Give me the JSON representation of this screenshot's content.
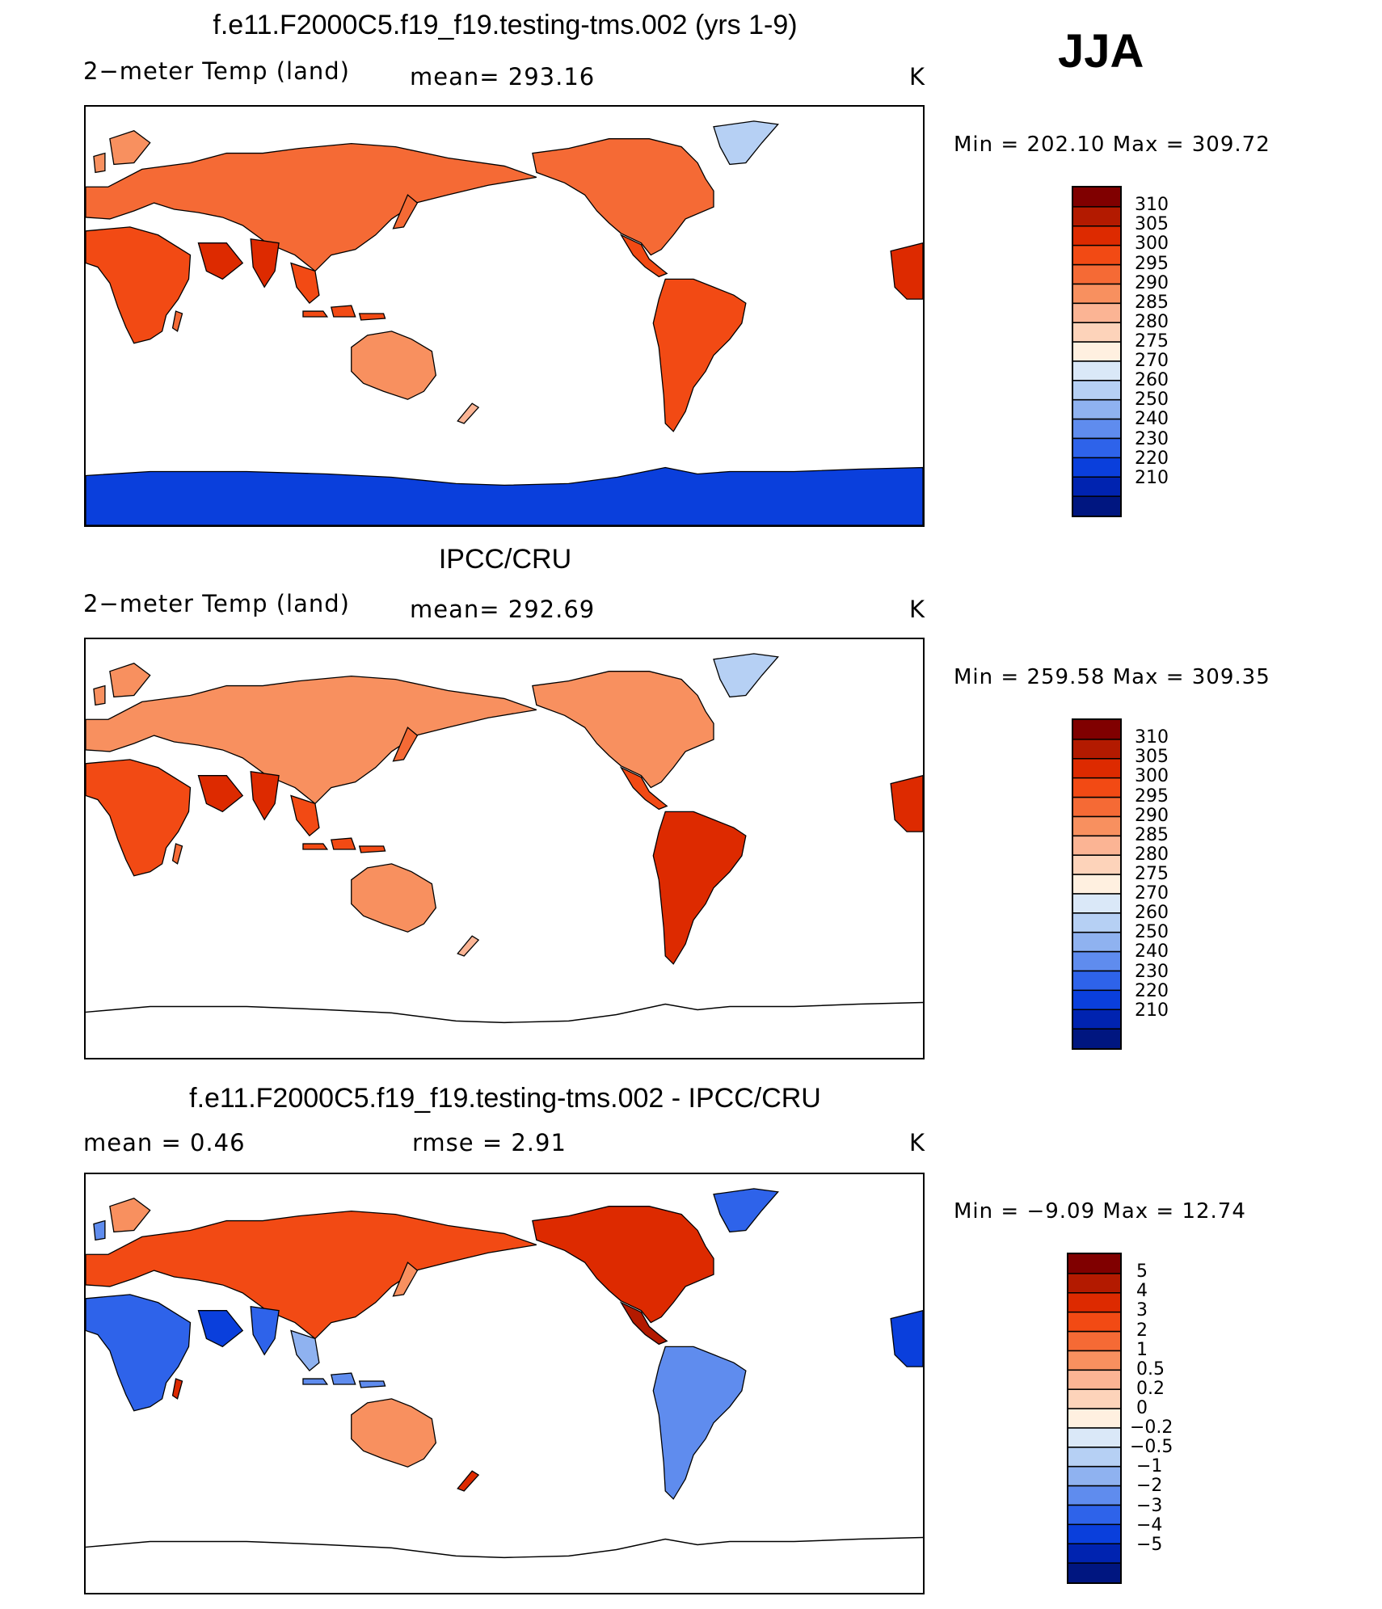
{
  "season": "JJA",
  "panels": [
    {
      "title": "f.e11.F2000C5.f19_f19.testing-tms.002 (yrs 1-9)",
      "variable": "2−meter Temp (land)",
      "stat1": "mean=  293.16",
      "units": "K",
      "minmax": "Min  =  202.10  Max  =  309.72"
    },
    {
      "title": "IPCC/CRU",
      "variable": "2−meter Temp (land)",
      "stat1": "mean=  292.69",
      "units": "K",
      "minmax": "Min  =  259.58  Max  =  309.35"
    },
    {
      "title": "f.e11.F2000C5.f19_f19.testing-tms.002 - IPCC/CRU",
      "variable": "mean  =     0.46",
      "stat1": "rmse  =     2.91",
      "units": "K",
      "minmax": "Min  =    −9.09  Max  =    12.74"
    }
  ],
  "colorbars": {
    "abs_levels": [
      "310",
      "305",
      "300",
      "295",
      "290",
      "285",
      "280",
      "275",
      "270",
      "260",
      "250",
      "240",
      "230",
      "220",
      "210"
    ],
    "abs_colors": [
      "#800000",
      "#b31a00",
      "#dd2a00",
      "#f24a14",
      "#f56a35",
      "#f8905f",
      "#fbb494",
      "#fdd3ba",
      "#fff0e0",
      "#dae8f8",
      "#b6d0f4",
      "#8fb2f0",
      "#5f8cee",
      "#2e63ea",
      "#0a3fdc",
      "#0023b0",
      "#001680"
    ],
    "diff_levels": [
      "5",
      "4",
      "3",
      "2",
      "1",
      "0.5",
      "0.2",
      "0",
      "−0.2",
      "−0.5",
      "−1",
      "−2",
      "−3",
      "−4",
      "−5"
    ],
    "diff_colors": [
      "#800000",
      "#b31a00",
      "#dd2a00",
      "#f24a14",
      "#f56a35",
      "#f8905f",
      "#fbb494",
      "#fdd3ba",
      "#fff0e0",
      "#dae8f8",
      "#b6d0f4",
      "#8fb2f0",
      "#5f8cee",
      "#2e63ea",
      "#0a3fdc",
      "#0023b0",
      "#001680"
    ]
  },
  "chart_data": [
    {
      "type": "heatmap",
      "title": "f.e11.F2000C5.f19_f19.testing-tms.002 (yrs 1-9)",
      "variable": "2-meter Temp (land)",
      "units": "K",
      "mean": 293.16,
      "min": 202.1,
      "max": 309.72,
      "contour_levels": [
        210,
        220,
        230,
        240,
        250,
        260,
        270,
        275,
        280,
        285,
        290,
        295,
        300,
        305,
        310
      ],
      "projection": "cylindrical equidistant, Pacific-centered"
    },
    {
      "type": "heatmap",
      "title": "IPCC/CRU",
      "variable": "2-meter Temp (land)",
      "units": "K",
      "mean": 292.69,
      "min": 259.58,
      "max": 309.35,
      "contour_levels": [
        210,
        220,
        230,
        240,
        250,
        260,
        270,
        275,
        280,
        285,
        290,
        295,
        300,
        305,
        310
      ],
      "projection": "cylindrical equidistant, Pacific-centered"
    },
    {
      "type": "heatmap",
      "title": "f.e11.F2000C5.f19_f19.testing-tms.002 - IPCC/CRU",
      "units": "K",
      "mean": 0.46,
      "rmse": 2.91,
      "min": -9.09,
      "max": 12.74,
      "contour_levels": [
        -5,
        -4,
        -3,
        -2,
        -1,
        -0.5,
        -0.2,
        0,
        0.2,
        0.5,
        1,
        2,
        3,
        4,
        5
      ],
      "projection": "cylindrical equidistant, Pacific-centered"
    }
  ]
}
